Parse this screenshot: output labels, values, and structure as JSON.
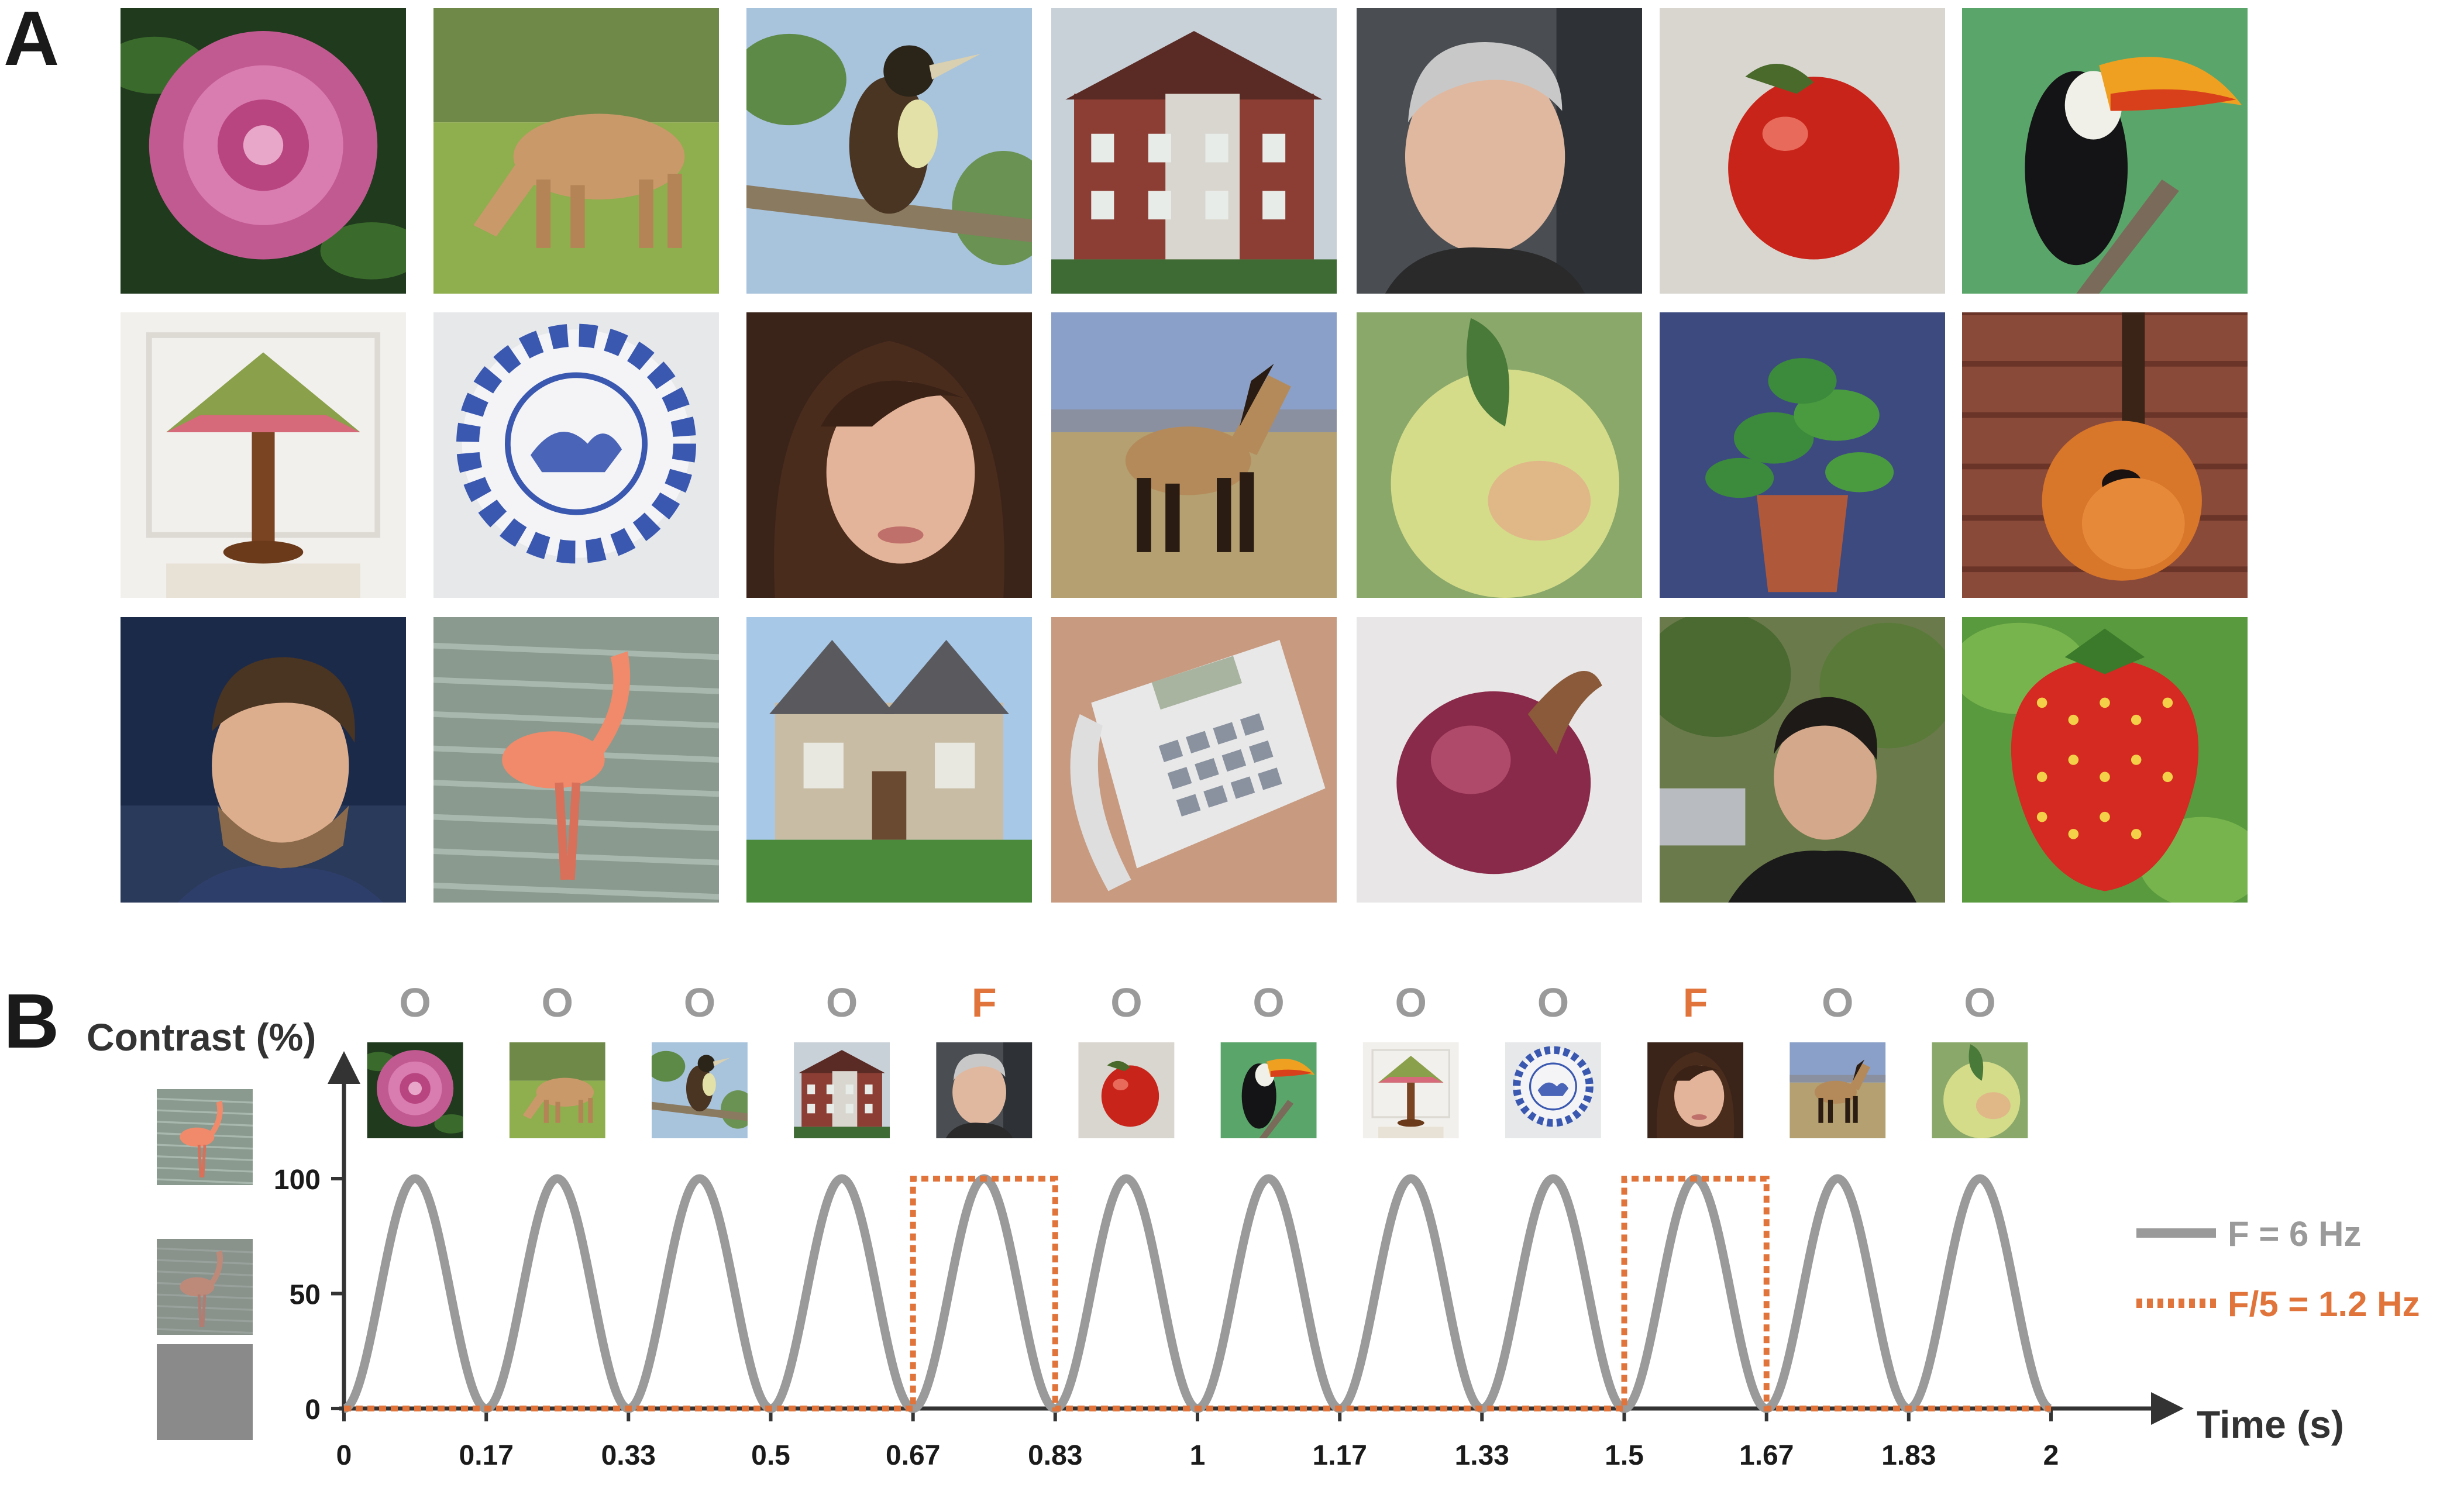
{
  "panel_a": {
    "label": "A",
    "images": [
      [
        "peony-flower",
        "pony",
        "bird-on-branch",
        "brick-mansion",
        "older-man-face",
        "red-tomato",
        "toucan"
      ],
      [
        "tiffany-lamp",
        "blue-white-plate",
        "woman-face",
        "horse-in-field",
        "green-apple",
        "potted-plant",
        "guitar"
      ],
      [
        "man-face",
        "flamingo",
        "stone-house",
        "desk-telephone",
        "red-onion",
        "woman-face-outdoors",
        "strawberry"
      ]
    ]
  },
  "panel_b": {
    "label": "B",
    "sequence": [
      {
        "letter": "O",
        "image": "peony-flower"
      },
      {
        "letter": "O",
        "image": "pony"
      },
      {
        "letter": "O",
        "image": "bird-on-branch"
      },
      {
        "letter": "O",
        "image": "brick-mansion"
      },
      {
        "letter": "F",
        "image": "older-man-face"
      },
      {
        "letter": "O",
        "image": "red-tomato"
      },
      {
        "letter": "O",
        "image": "toucan"
      },
      {
        "letter": "O",
        "image": "tiffany-lamp"
      },
      {
        "letter": "O",
        "image": "blue-white-plate"
      },
      {
        "letter": "F",
        "image": "woman-face"
      },
      {
        "letter": "O",
        "image": "horse-in-field"
      },
      {
        "letter": "O",
        "image": "green-apple"
      }
    ],
    "contrast_examples": [
      "flamingo-100",
      "flamingo-50",
      "gray-0"
    ]
  },
  "colors": {
    "gray": "#9a9a9a",
    "orange": "#e0743a",
    "axis": "#333333"
  },
  "chart_data": {
    "type": "line",
    "ylabel": "Contrast (%)",
    "xlabel": "Time (s)",
    "yticks": [
      "0",
      "50",
      "100"
    ],
    "ytick_values": [
      0,
      50,
      100
    ],
    "xticks": [
      "0",
      "0.17",
      "0.33",
      "0.5",
      "0.67",
      "0.83",
      "1",
      "1.17",
      "1.33",
      "1.5",
      "1.67",
      "1.83",
      "2"
    ],
    "xtick_values": [
      0,
      0.1667,
      0.3333,
      0.5,
      0.6667,
      0.8333,
      1,
      1.1667,
      1.3333,
      1.5,
      1.6667,
      1.8333,
      2
    ],
    "xlim": [
      0,
      2
    ],
    "ylim": [
      0,
      100
    ],
    "series": [
      {
        "name": "F = 6 Hz",
        "kind": "sinusoid",
        "frequency_hz": 6,
        "min": 0,
        "max": 100,
        "style": "solid"
      },
      {
        "name": "F/5 = 1.2 Hz",
        "kind": "square",
        "style": "dotted",
        "on_intervals": [
          [
            0.6667,
            0.8333
          ],
          [
            1.5,
            1.6667
          ]
        ],
        "low": 0,
        "high": 100
      }
    ],
    "legend_position": "right"
  }
}
